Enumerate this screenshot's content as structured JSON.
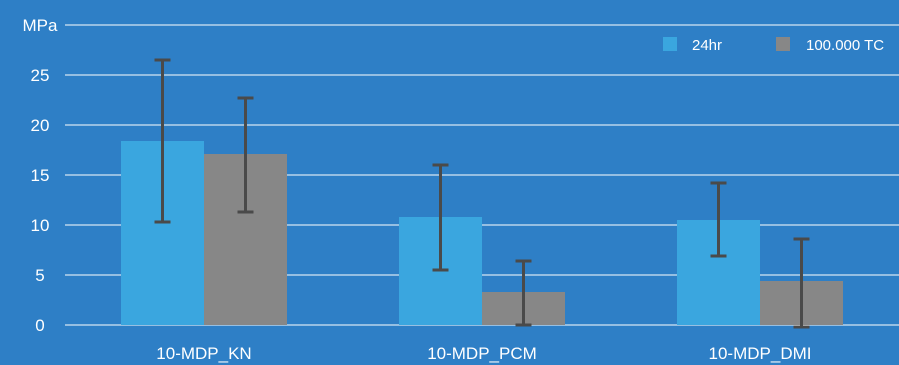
{
  "chart_data": {
    "type": "bar",
    "unit_label": "MPa",
    "categories": [
      "10-MDP_KN",
      "10-MDP_PCM",
      "10-MDP_DMI"
    ],
    "series": [
      {
        "name": "24hr",
        "color": "#3aa6df",
        "values": [
          18.4,
          10.8,
          10.5
        ],
        "error_low": [
          10.3,
          5.5,
          6.9
        ],
        "error_high": [
          26.5,
          16.0,
          14.2
        ]
      },
      {
        "name": "100.000 TC",
        "color": "#878787",
        "values": [
          17.1,
          3.3,
          4.4
        ],
        "error_low": [
          11.3,
          0.0,
          -0.2
        ],
        "error_high": [
          22.7,
          6.4,
          8.6
        ]
      }
    ],
    "yticks": [
      "0",
      "5",
      "10",
      "15",
      "20",
      "25"
    ],
    "ylim": [
      0,
      30
    ],
    "grid": true,
    "legend_position": "top-right",
    "background": "#2e7fc6",
    "error_bar_color": "#4a4a4a"
  }
}
